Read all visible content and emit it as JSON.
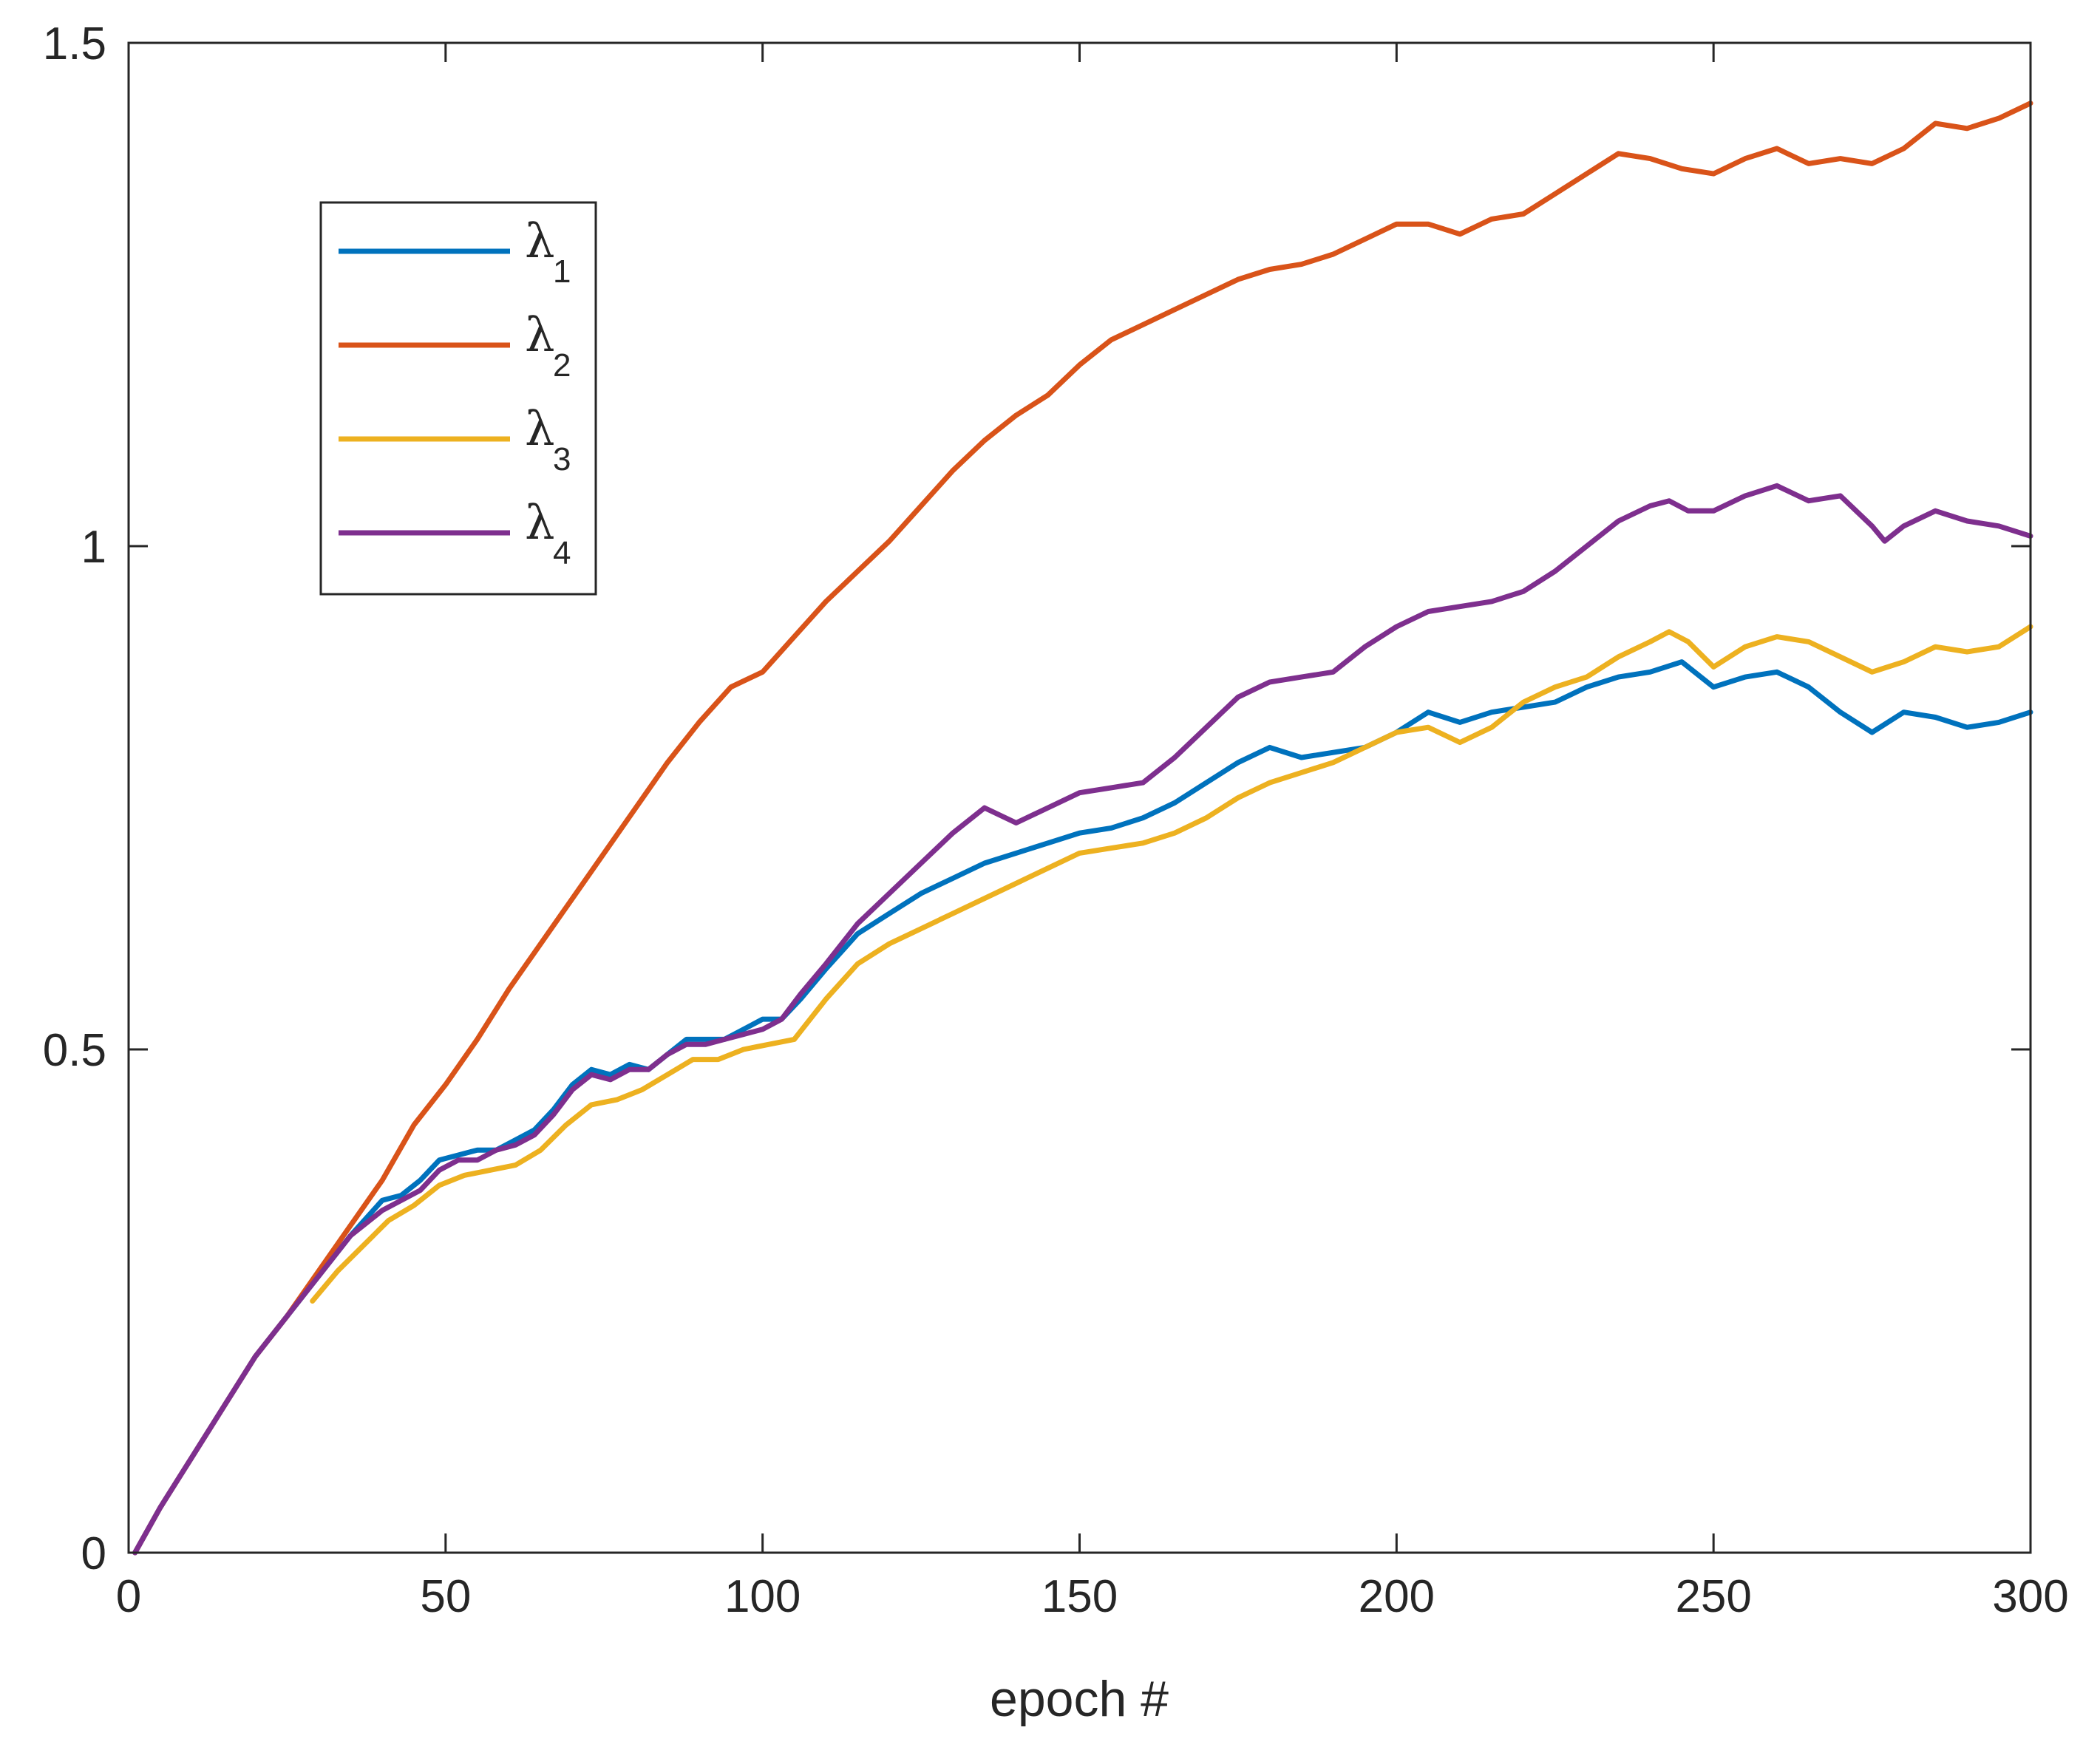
{
  "chart_data": {
    "type": "line",
    "title": "",
    "xlabel": "epoch #",
    "ylabel": "",
    "xlim": [
      0,
      300
    ],
    "ylim": [
      0,
      1.5
    ],
    "xticks": [
      0,
      50,
      100,
      150,
      200,
      250,
      300
    ],
    "xtick_labels": [
      "0",
      "50",
      "100",
      "150",
      "200",
      "250",
      "300"
    ],
    "yticks": [
      0,
      0.5,
      1,
      1.5
    ],
    "ytick_labels": [
      "0",
      "0.5",
      "1",
      "1.5"
    ],
    "grid": false,
    "legend_position": "upper-left",
    "series": [
      {
        "name": "λ1",
        "symbol": "λ",
        "subscript": "1",
        "color": "#0072BD",
        "x": [
          1,
          5,
          10,
          15,
          20,
          25,
          30,
          35,
          40,
          43,
          46,
          49,
          52,
          55,
          58,
          61,
          64,
          67,
          70,
          73,
          76,
          79,
          82,
          85,
          88,
          91,
          94,
          97,
          100,
          103,
          106,
          110,
          115,
          120,
          125,
          130,
          135,
          140,
          145,
          150,
          155,
          160,
          165,
          170,
          175,
          180,
          185,
          190,
          195,
          200,
          205,
          210,
          215,
          220,
          225,
          230,
          235,
          240,
          245,
          250,
          255,
          260,
          265,
          270,
          275,
          280,
          285,
          290,
          295,
          300
        ],
        "y": [
          0,
          0.045,
          0.095,
          0.145,
          0.195,
          0.235,
          0.275,
          0.315,
          0.35,
          0.355,
          0.37,
          0.39,
          0.395,
          0.4,
          0.4,
          0.41,
          0.42,
          0.44,
          0.465,
          0.48,
          0.475,
          0.485,
          0.48,
          0.495,
          0.51,
          0.51,
          0.51,
          0.52,
          0.53,
          0.53,
          0.55,
          0.58,
          0.615,
          0.635,
          0.655,
          0.67,
          0.685,
          0.695,
          0.705,
          0.715,
          0.72,
          0.73,
          0.745,
          0.765,
          0.785,
          0.8,
          0.79,
          0.795,
          0.8,
          0.815,
          0.835,
          0.825,
          0.835,
          0.84,
          0.845,
          0.86,
          0.87,
          0.875,
          0.885,
          0.86,
          0.87,
          0.875,
          0.86,
          0.835,
          0.815,
          0.835,
          0.83,
          0.82,
          0.825,
          0.835
        ]
      },
      {
        "name": "λ2",
        "symbol": "λ",
        "subscript": "2",
        "color": "#D95319",
        "x": [
          1,
          5,
          10,
          15,
          20,
          25,
          30,
          35,
          40,
          45,
          50,
          55,
          60,
          65,
          70,
          75,
          80,
          85,
          90,
          95,
          100,
          105,
          110,
          115,
          120,
          125,
          130,
          135,
          140,
          145,
          150,
          155,
          160,
          165,
          170,
          175,
          180,
          185,
          190,
          195,
          200,
          205,
          210,
          215,
          220,
          225,
          230,
          235,
          240,
          245,
          250,
          255,
          260,
          265,
          270,
          275,
          280,
          285,
          290,
          295,
          300
        ],
        "y": [
          0,
          0.045,
          0.095,
          0.145,
          0.195,
          0.235,
          0.28,
          0.325,
          0.37,
          0.425,
          0.465,
          0.51,
          0.56,
          0.605,
          0.65,
          0.695,
          0.74,
          0.785,
          0.825,
          0.86,
          0.875,
          0.91,
          0.945,
          0.975,
          1.005,
          1.04,
          1.075,
          1.105,
          1.13,
          1.15,
          1.18,
          1.205,
          1.22,
          1.235,
          1.25,
          1.265,
          1.275,
          1.28,
          1.29,
          1.305,
          1.32,
          1.32,
          1.31,
          1.325,
          1.33,
          1.35,
          1.37,
          1.39,
          1.385,
          1.375,
          1.37,
          1.385,
          1.395,
          1.38,
          1.385,
          1.38,
          1.395,
          1.42,
          1.415,
          1.425,
          1.44
        ]
      },
      {
        "name": "λ3",
        "symbol": "λ",
        "subscript": "3",
        "color": "#EDB120",
        "x": [
          29,
          33,
          37,
          41,
          45,
          49,
          53,
          57,
          61,
          65,
          69,
          73,
          77,
          81,
          85,
          89,
          93,
          97,
          101,
          105,
          110,
          115,
          120,
          125,
          130,
          135,
          140,
          145,
          150,
          155,
          160,
          165,
          170,
          175,
          180,
          185,
          190,
          195,
          200,
          205,
          210,
          215,
          220,
          225,
          230,
          235,
          240,
          243,
          246,
          250,
          255,
          260,
          265,
          270,
          275,
          280,
          285,
          290,
          295,
          300
        ],
        "y": [
          0.25,
          0.28,
          0.305,
          0.33,
          0.345,
          0.365,
          0.375,
          0.38,
          0.385,
          0.4,
          0.425,
          0.445,
          0.45,
          0.46,
          0.475,
          0.49,
          0.49,
          0.5,
          0.505,
          0.51,
          0.55,
          0.585,
          0.605,
          0.62,
          0.635,
          0.65,
          0.665,
          0.68,
          0.695,
          0.7,
          0.705,
          0.715,
          0.73,
          0.75,
          0.765,
          0.775,
          0.785,
          0.8,
          0.815,
          0.82,
          0.805,
          0.82,
          0.845,
          0.86,
          0.87,
          0.89,
          0.905,
          0.915,
          0.905,
          0.88,
          0.9,
          0.91,
          0.905,
          0.89,
          0.875,
          0.885,
          0.9,
          0.895,
          0.9,
          0.92
        ]
      },
      {
        "name": "λ4",
        "symbol": "λ",
        "subscript": "4",
        "color": "#7E2F8E",
        "x": [
          1,
          5,
          10,
          15,
          20,
          25,
          30,
          35,
          40,
          43,
          46,
          49,
          52,
          55,
          58,
          61,
          64,
          67,
          70,
          73,
          76,
          79,
          82,
          85,
          88,
          91,
          94,
          97,
          100,
          103,
          106,
          110,
          115,
          120,
          125,
          130,
          135,
          140,
          145,
          150,
          155,
          160,
          165,
          170,
          175,
          180,
          185,
          190,
          195,
          200,
          205,
          210,
          215,
          220,
          225,
          230,
          235,
          240,
          243,
          246,
          250,
          255,
          260,
          265,
          270,
          275,
          277,
          280,
          285,
          290,
          295,
          300
        ],
        "y": [
          0,
          0.045,
          0.095,
          0.145,
          0.195,
          0.235,
          0.275,
          0.315,
          0.34,
          0.35,
          0.36,
          0.38,
          0.39,
          0.39,
          0.4,
          0.405,
          0.415,
          0.435,
          0.46,
          0.475,
          0.47,
          0.48,
          0.48,
          0.495,
          0.505,
          0.505,
          0.51,
          0.515,
          0.52,
          0.53,
          0.555,
          0.585,
          0.625,
          0.655,
          0.685,
          0.715,
          0.74,
          0.725,
          0.74,
          0.755,
          0.76,
          0.765,
          0.79,
          0.82,
          0.85,
          0.865,
          0.87,
          0.875,
          0.9,
          0.92,
          0.935,
          0.94,
          0.945,
          0.955,
          0.975,
          1.0,
          1.025,
          1.04,
          1.045,
          1.035,
          1.035,
          1.05,
          1.06,
          1.045,
          1.05,
          1.02,
          1.005,
          1.02,
          1.035,
          1.025,
          1.02,
          1.01
        ]
      }
    ]
  }
}
